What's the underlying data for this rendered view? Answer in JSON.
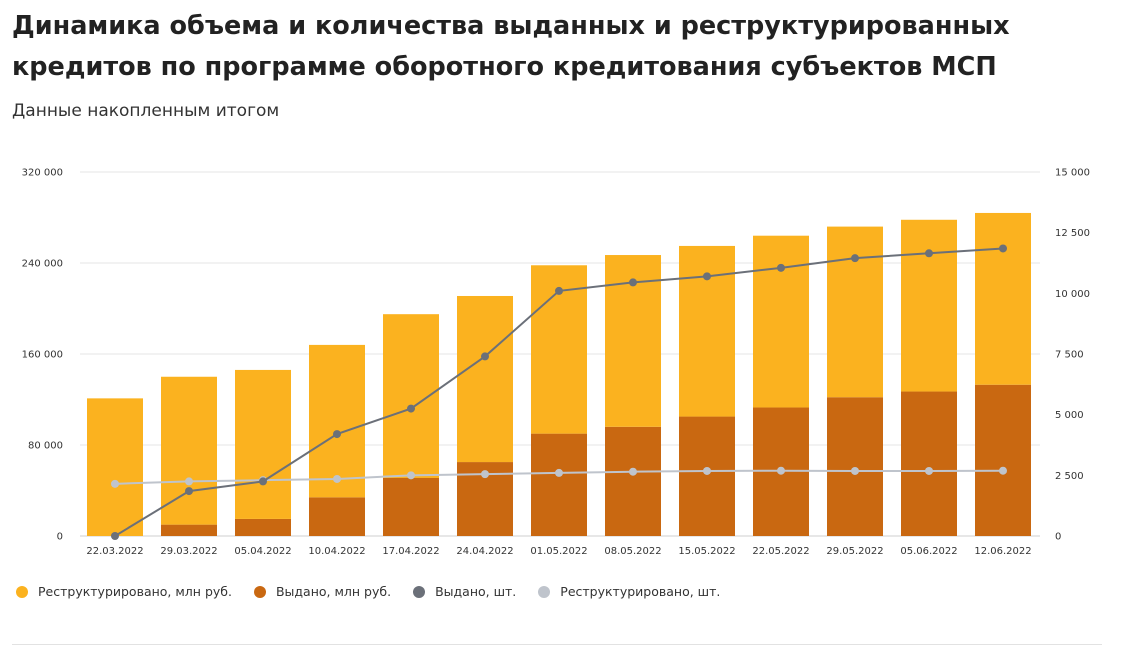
{
  "header": {
    "title": "Динамика объема и количества выданных и реструктурированных кредитов по программе оборотного кредитования субъектов МСП",
    "subtitle": "Данные накопленным итогом"
  },
  "chart_data": {
    "type": "bar",
    "stacked": true,
    "categories": [
      "22.03.2022",
      "29.03.2022",
      "05.04.2022",
      "10.04.2022",
      "17.04.2022",
      "24.04.2022",
      "01.05.2022",
      "08.05.2022",
      "15.05.2022",
      "22.05.2022",
      "29.05.2022",
      "05.06.2022",
      "12.06.2022"
    ],
    "y_left": {
      "ylim": [
        0,
        320000
      ],
      "ticks": [
        "0",
        "80 000",
        "160 000",
        "240 000",
        "320 000"
      ],
      "tick_values": [
        0,
        80000,
        160000,
        240000,
        320000
      ]
    },
    "y_right": {
      "ylim": [
        0,
        15000
      ],
      "ticks": [
        "0",
        "2 500",
        "5 000",
        "7 500",
        "10 000",
        "12 500",
        "15 000"
      ],
      "tick_values": [
        0,
        2500,
        5000,
        7500,
        10000,
        12500,
        15000
      ]
    },
    "grid": true,
    "legend_position": "bottom-left",
    "series": [
      {
        "name": "Реструктурировано, млн руб.",
        "kind": "bar",
        "axis": "left",
        "color": "#FBB21F",
        "values": [
          121000,
          130000,
          131000,
          134000,
          144000,
          146000,
          148000,
          151000,
          150000,
          151000,
          150000,
          151000,
          151000
        ]
      },
      {
        "name": "Выдано, млн руб.",
        "kind": "bar",
        "axis": "left",
        "color": "#C96811",
        "values": [
          0,
          10000,
          15000,
          34000,
          51000,
          65000,
          90000,
          96000,
          105000,
          113000,
          122000,
          127000,
          133000
        ]
      },
      {
        "name": "Выдано, шт.",
        "kind": "line",
        "axis": "right",
        "color": "#6B7079",
        "values": [
          0,
          1850,
          2250,
          4200,
          5250,
          7400,
          10100,
          10450,
          10700,
          11050,
          11450,
          11650,
          11850
        ]
      },
      {
        "name": "Реструктурировано, шт.",
        "kind": "line",
        "axis": "right",
        "color": "#BFC4CC",
        "values": [
          2150,
          2250,
          2300,
          2350,
          2500,
          2550,
          2600,
          2650,
          2680,
          2690,
          2680,
          2680,
          2690
        ]
      }
    ]
  }
}
